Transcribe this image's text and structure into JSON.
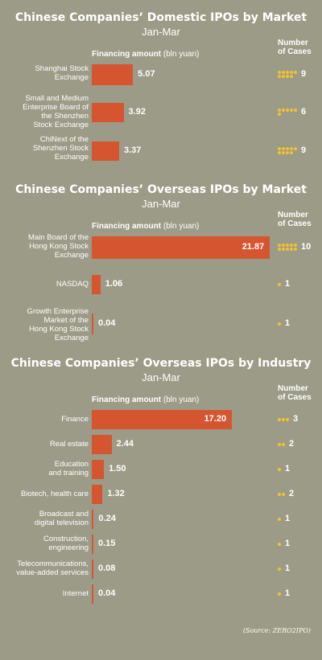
{
  "colors": {
    "background": "#9c9b87",
    "bar": "#d55531",
    "dot": "#f1c232",
    "text": "#ffffff"
  },
  "source": "(Source: ZERO2IPO)",
  "chart_data": [
    {
      "type": "bar",
      "orientation": "horizontal",
      "title": "Chinese Companies’ Domestic IPOs by Market",
      "subtitle": "Jan-Mar",
      "value_label_bold": "Financing amount",
      "value_label_unit": "(bln yuan)",
      "count_label": "Number of Cases",
      "categories": [
        "Shanghai Stock Exchange",
        "Small and Medium Enterprise Board of the Shenzhen Stock Exchange",
        "ChiNext of the Shenzhen Stock Exchange"
      ],
      "values": [
        5.07,
        3.92,
        3.37
      ],
      "value_labels": [
        "5.07",
        "3.92",
        "3.37"
      ],
      "counts": [
        9,
        6,
        9
      ],
      "xlim": [
        0,
        22
      ]
    },
    {
      "type": "bar",
      "orientation": "horizontal",
      "title": "Chinese Companies’ Overseas IPOs by Market",
      "subtitle": "Jan-Mar",
      "value_label_bold": "Financing amount",
      "value_label_unit": "(bln yuan)",
      "count_label": "Number of Cases",
      "categories": [
        "Main Board of the Hong Kong Stock Exchange",
        "NASDAQ",
        "Growth Enterprise Market of the Hong Kong Stock Exchange"
      ],
      "values": [
        21.87,
        1.06,
        0.04
      ],
      "value_labels": [
        "21.87",
        "1.06",
        "0.04"
      ],
      "counts": [
        10,
        1,
        1
      ],
      "xlim": [
        0,
        22
      ]
    },
    {
      "type": "bar",
      "orientation": "horizontal",
      "title": "Chinese Companies’ Overseas IPOs by Industry",
      "subtitle": "Jan-Mar",
      "value_label_bold": "Financing amount",
      "value_label_unit": "(bln yuan)",
      "count_label": "Number of Cases",
      "categories": [
        "Finance",
        "Real estate",
        "Education and training",
        "Biotech, health care",
        "Broadcast and digital television",
        "Construction, engineering",
        "Telecommunications, value-added services",
        "Internet"
      ],
      "values": [
        17.2,
        2.44,
        1.5,
        1.32,
        0.24,
        0.15,
        0.08,
        0.04
      ],
      "value_labels": [
        "17.20",
        "2.44",
        "1.50",
        "1.32",
        "0.24",
        "0.15",
        "0.08",
        "0.04"
      ],
      "counts": [
        3,
        2,
        1,
        2,
        1,
        1,
        1,
        1
      ],
      "xlim": [
        0,
        22
      ]
    }
  ]
}
